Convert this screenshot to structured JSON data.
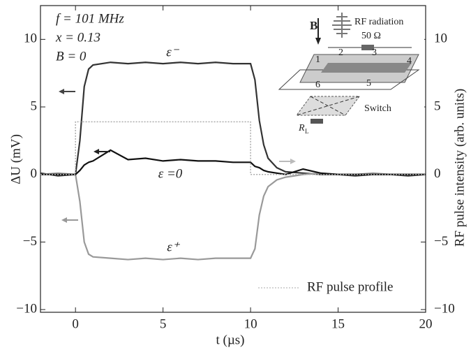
{
  "chart_data": {
    "type": "line",
    "xlabel": "t (µs)",
    "ylabel": "ΔU (mV)",
    "y2label": "RF pulse intensity (arb. units)",
    "xlim": [
      -2,
      20
    ],
    "ylim": [
      -10.2,
      12.5
    ],
    "y2lim": [
      -10.2,
      12.5
    ],
    "xticks": [
      0,
      5,
      10,
      15,
      20
    ],
    "yticks": [
      {
        "value": -10,
        "label": "−10"
      },
      {
        "value": -5,
        "label": "−5"
      },
      0,
      5,
      10
    ],
    "y2ticks": [
      {
        "value": -10,
        "label": "−10"
      },
      {
        "value": -5,
        "label": "−5"
      },
      0,
      5,
      10
    ],
    "annotations": [
      "f = 101 MHz",
      "x = 0.13",
      "B = 0"
    ],
    "x": [
      -2,
      -1,
      0,
      0.25,
      0.5,
      0.75,
      1,
      2,
      3,
      4,
      5,
      6,
      7,
      8,
      9,
      10,
      10.25,
      10.5,
      10.75,
      11,
      11.5,
      12,
      13,
      14,
      15,
      16,
      17,
      18,
      19,
      20
    ],
    "series": [
      {
        "name": "ε⁻",
        "color": "#333333",
        "values": [
          0.1,
          -0.1,
          0,
          2.5,
          6.5,
          7.8,
          8.1,
          8.3,
          8.2,
          8.3,
          8.2,
          8.3,
          8.2,
          8.3,
          8.2,
          8.2,
          7.0,
          4.0,
          2.2,
          1.2,
          0.5,
          0.2,
          0.1,
          0,
          0,
          -0.1,
          0,
          0,
          -0.1,
          0
        ]
      },
      {
        "name": "ε⁺",
        "color": "#999999",
        "values": [
          0,
          0.1,
          0,
          -2.0,
          -5.0,
          -5.9,
          -6.1,
          -6.2,
          -6.3,
          -6.2,
          -6.3,
          -6.2,
          -6.3,
          -6.2,
          -6.2,
          -6.2,
          -5.5,
          -3.0,
          -1.6,
          -0.9,
          -0.4,
          -0.2,
          0,
          0.1,
          0,
          0,
          0.1,
          0,
          0,
          0
        ]
      },
      {
        "name": "ε =0",
        "color": "#111111",
        "values": [
          0,
          0,
          0,
          0.3,
          0.7,
          0.9,
          1.0,
          1.8,
          1.1,
          1.2,
          1.0,
          1.1,
          1.0,
          1.0,
          0.9,
          0.9,
          0.6,
          0.5,
          0.3,
          0.2,
          0.1,
          0,
          0.4,
          0.1,
          0,
          0,
          0,
          0,
          0,
          0
        ]
      },
      {
        "name": "RF pulse profile",
        "color": "#aaaaaa",
        "axis": "y2",
        "dotted": true,
        "x": [
          -2,
          0,
          0,
          10,
          10,
          20
        ],
        "values": [
          0,
          0,
          3.9,
          3.9,
          0,
          0
        ]
      }
    ],
    "inset": {
      "field": "B",
      "radiation": "RF radiation",
      "resistor": "50 Ω",
      "contacts": [
        "1",
        "2",
        "3",
        "4",
        "5",
        "6"
      ],
      "switch": "Switch",
      "load": "R",
      "load_subscript": "L"
    }
  }
}
